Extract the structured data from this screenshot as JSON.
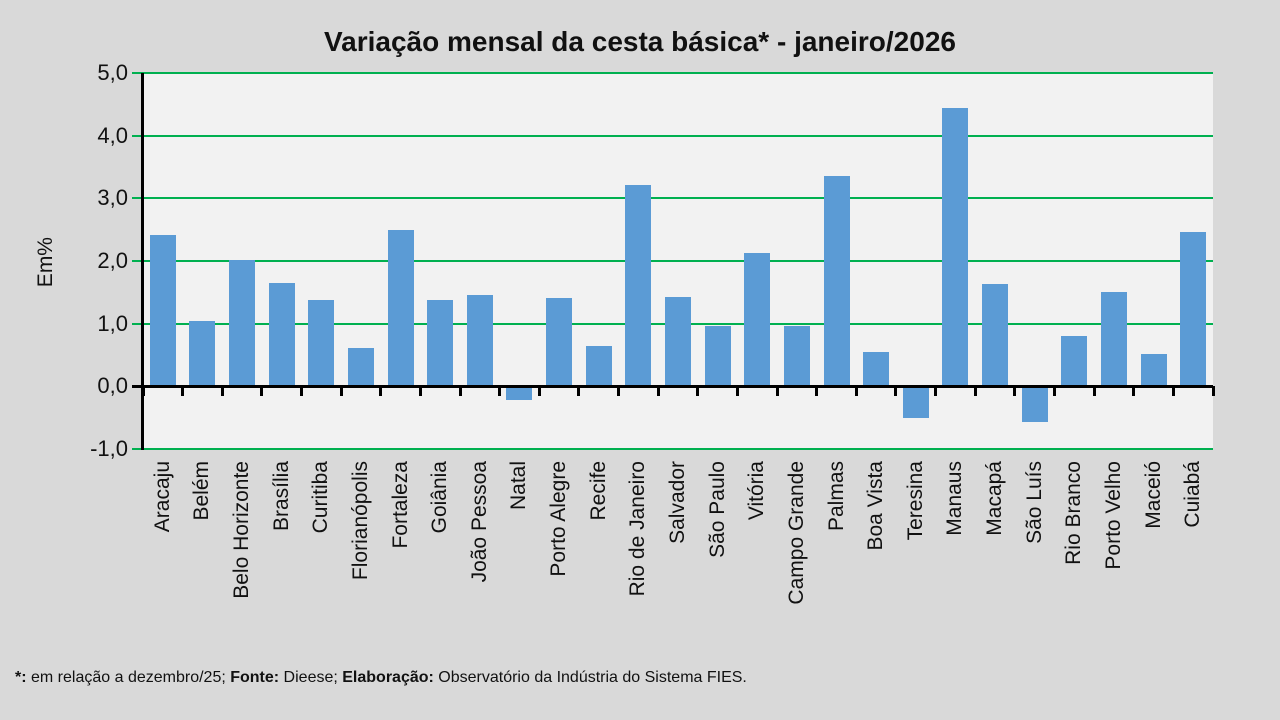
{
  "title": "Variação mensal da cesta básica* - janeiro/2026",
  "colors": {
    "bar": "#5B9BD5",
    "gridline": "#00B050",
    "axis": "#000000",
    "plot_background": "#F2F2F2",
    "page_background": "#D9D9D9"
  },
  "chart_data": {
    "type": "bar",
    "title": "Variação mensal da cesta básica* - janeiro/2026",
    "xlabel": "",
    "ylabel": "Em%",
    "ylim": [
      -1.0,
      5.0
    ],
    "grid": true,
    "legend": false,
    "decimal_separator": ",",
    "yticks": [
      {
        "value": 5,
        "label": "5,0"
      },
      {
        "value": 4,
        "label": "4,0"
      },
      {
        "value": 3,
        "label": "3,0"
      },
      {
        "value": 2,
        "label": "2,0"
      },
      {
        "value": 1,
        "label": "1,0"
      },
      {
        "value": 0,
        "label": "0,0"
      },
      {
        "value": -1,
        "label": "-1,0"
      }
    ],
    "categories": [
      "Aracaju",
      "Belém",
      "Belo Horizonte",
      "Brasília",
      "Curitiba",
      "Florianópolis",
      "Fortaleza",
      "Goiânia",
      "João Pessoa",
      "Natal",
      "Porto Alegre",
      "Recife",
      "Rio de Janeiro",
      "Salvador",
      "São Paulo",
      "Vitória",
      "Campo Grande",
      "Palmas",
      "Boa Vista",
      "Teresina",
      "Manaus",
      "Macapá",
      "São Luís",
      "Rio Branco",
      "Porto Velho",
      "Maceió",
      "Cuiabá"
    ],
    "values": [
      2.42,
      1.04,
      2.01,
      1.65,
      1.37,
      0.61,
      2.5,
      1.37,
      1.45,
      -0.22,
      1.41,
      0.65,
      3.22,
      1.43,
      0.97,
      2.12,
      0.96,
      3.36,
      0.55,
      -0.5,
      4.44,
      1.64,
      -0.57,
      0.81,
      1.51,
      0.51,
      2.46
    ]
  },
  "footnote": {
    "segments": [
      {
        "text": "*:",
        "bold": true
      },
      {
        "text": " em relação a dezembro/25; ",
        "bold": false
      },
      {
        "text": "Fonte:",
        "bold": true
      },
      {
        "text": " Dieese; ",
        "bold": false
      },
      {
        "text": "Elaboração:",
        "bold": true
      },
      {
        "text": " Observatório da Indústria do Sistema FIES.",
        "bold": false
      }
    ]
  }
}
